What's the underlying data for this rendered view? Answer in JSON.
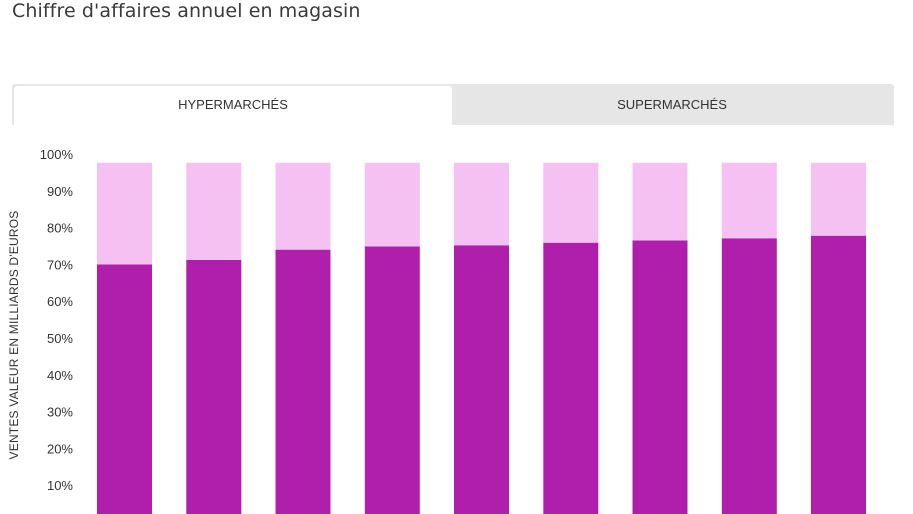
{
  "page": {
    "title": "Chiffre d'affaires annuel en magasin"
  },
  "tabs": [
    {
      "label": "HYPERMARCHÉS",
      "active": true
    },
    {
      "label": "SUPERMARCHÉS",
      "active": false
    }
  ],
  "chart_data": {
    "type": "bar",
    "stacked": true,
    "ylabel": "VENTES VALEUR EN MILLIARDS D'EUROS",
    "ylim": [
      0,
      100
    ],
    "yticks": [
      "10%",
      "20%",
      "30%",
      "40%",
      "50%",
      "60%",
      "70%",
      "80%",
      "90%",
      "100%"
    ],
    "ytick_values": [
      10,
      20,
      30,
      40,
      50,
      60,
      70,
      80,
      90,
      100
    ],
    "grid": false,
    "bar_count": 9,
    "series": [
      {
        "values": [
          70,
          71.2,
          74,
          74.9,
          75.2,
          75.9,
          76.5,
          77.1,
          77.8
        ],
        "color": "#b01fac"
      },
      {
        "values": [
          27.6,
          26.4,
          23.6,
          22.7,
          22.4,
          21.7,
          21.1,
          20.5,
          19.8
        ],
        "color": "#f5c0f2"
      }
    ],
    "colors": {
      "primary": "#b01fac",
      "secondary": "#f5c0f2"
    }
  }
}
